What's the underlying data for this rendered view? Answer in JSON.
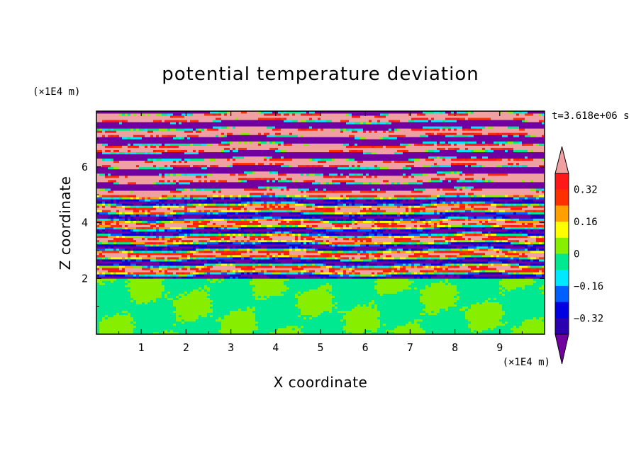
{
  "chart_data": {
    "type": "heatmap",
    "title": "potential temperature deviation",
    "xlabel": "X coordinate",
    "ylabel": "Z coordinate",
    "x_unit": "(×1E4 m)",
    "y_unit": "(×1E4 m)",
    "time_label": "t=3.618e+06 s",
    "xlim": [
      0,
      10
    ],
    "ylim": [
      0,
      8
    ],
    "x_ticks": [
      "1",
      "2",
      "3",
      "4",
      "5",
      "6",
      "7",
      "8",
      "9"
    ],
    "x_tick_values": [
      1,
      2,
      3,
      4,
      5,
      6,
      7,
      8,
      9
    ],
    "y_ticks": [
      "2",
      "4",
      "6"
    ],
    "y_tick_values": [
      2,
      4,
      6
    ],
    "grid": false,
    "colorbar": {
      "placement": "right",
      "levels": [
        -0.4,
        -0.32,
        -0.24,
        -0.16,
        -0.08,
        0,
        0.08,
        0.16,
        0.24,
        0.32,
        0.4
      ],
      "colors": [
        "#7000a0",
        "#2a00b0",
        "#0000e0",
        "#0060ff",
        "#00e8ff",
        "#00e890",
        "#88ee00",
        "#ffff00",
        "#ffa000",
        "#ff3000",
        "#ff1818",
        "#f0a0a0"
      ],
      "tick_labels": [
        "0.32",
        "0.16",
        "0",
        "−0.16",
        "−0.32"
      ],
      "tick_values": [
        0.32,
        0.16,
        0,
        -0.16,
        -0.32
      ]
    },
    "regions": [
      {
        "z_range": [
          0,
          2
        ],
        "description_values": [
          0,
          0.08
        ]
      },
      {
        "z_range": [
          2,
          8
        ],
        "description_values": [
          -0.4,
          0.4
        ]
      }
    ]
  }
}
